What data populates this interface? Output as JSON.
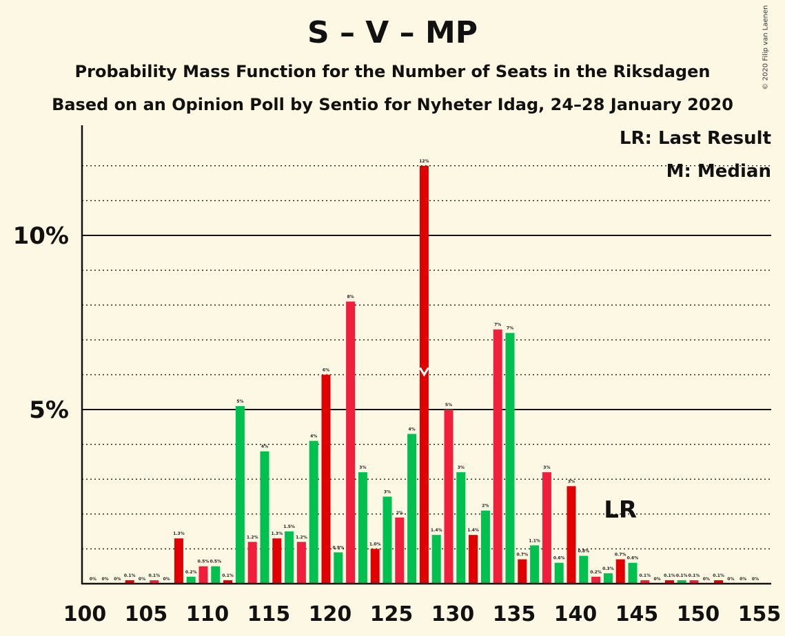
{
  "header": {
    "title": "S – V – MP",
    "subtitle1": "Probability Mass Function for the Number of Seats in the Riksdagen",
    "subtitle2": "Based on an Opinion Poll by Sentio for Nyheter Idag, 24–28 January 2020"
  },
  "legend": {
    "lr": "LR: Last Result",
    "median": "M: Median"
  },
  "copyright": "© 2020 Filip van Laenen",
  "colors": {
    "green": "#00c050",
    "red": "#e00000",
    "pink": "#f0203c",
    "background": "#fdf8e3",
    "axis": "#111111"
  },
  "chart_data": {
    "type": "bar",
    "x": [
      101,
      102,
      103,
      104,
      105,
      106,
      107,
      108,
      109,
      110,
      111,
      112,
      113,
      114,
      115,
      116,
      117,
      118,
      119,
      120,
      121,
      122,
      123,
      124,
      125,
      126,
      127,
      128,
      129,
      130,
      131,
      132,
      133,
      134,
      135,
      136,
      137,
      138,
      139,
      140,
      141,
      142,
      143,
      144,
      145,
      146,
      147,
      148,
      149,
      150,
      151,
      152,
      153,
      154,
      155
    ],
    "values": [
      0,
      0,
      0,
      0.1,
      0,
      0.1,
      0,
      1.3,
      0.2,
      0.5,
      0.5,
      0.1,
      5.1,
      1.2,
      3.8,
      1.3,
      1.5,
      1.2,
      4.1,
      6.0,
      0.9,
      8.1,
      3.2,
      1.0,
      2.5,
      1.9,
      4.3,
      12.0,
      1.4,
      5.0,
      3.2,
      1.4,
      2.1,
      7.3,
      7.2,
      0.7,
      1.1,
      3.2,
      0.6,
      2.8,
      0.8,
      0.2,
      0.3,
      0.7,
      0.6,
      0.1,
      0,
      0.1,
      0.1,
      0.1,
      0,
      0.1,
      0,
      0,
      0
    ],
    "labels": [
      "0%",
      "0%",
      "0%",
      "0.1%",
      "0%",
      "0.1%",
      "0%",
      "1.3%",
      "0.2%",
      "0.5%",
      "0.5%",
      "0.1%",
      "5%",
      "1.2%",
      "4%",
      "1.3%",
      "1.5%",
      "1.2%",
      "4%",
      "6%",
      "0.9%",
      "8%",
      "3%",
      "1.0%",
      "3%",
      "2%",
      "4%",
      "12%",
      "1.4%",
      "5%",
      "3%",
      "1.4%",
      "2%",
      "7%",
      "7%",
      "0.7%",
      "1.1%",
      "3%",
      "0.6%",
      "3%",
      "0.8%",
      "0.2%",
      "0.3%",
      "0.7%",
      "0.6%",
      "0.1%",
      "0%",
      "0.1%",
      "0.1%",
      "0.1%",
      "0%",
      "0.1%",
      "0%",
      "0%",
      "0%"
    ],
    "x_ticks": [
      100,
      105,
      110,
      115,
      120,
      125,
      130,
      135,
      140,
      145,
      150,
      155
    ],
    "y_ticks": [
      {
        "value": 5,
        "label": "5%"
      },
      {
        "value": 10,
        "label": "10%"
      }
    ],
    "xlim": [
      100,
      155
    ],
    "ylim": [
      0,
      13
    ],
    "median": 128,
    "last_result": 144,
    "last_result_label": "LR",
    "grid": "dotted at every 1%, solid at 5% and 10%"
  }
}
